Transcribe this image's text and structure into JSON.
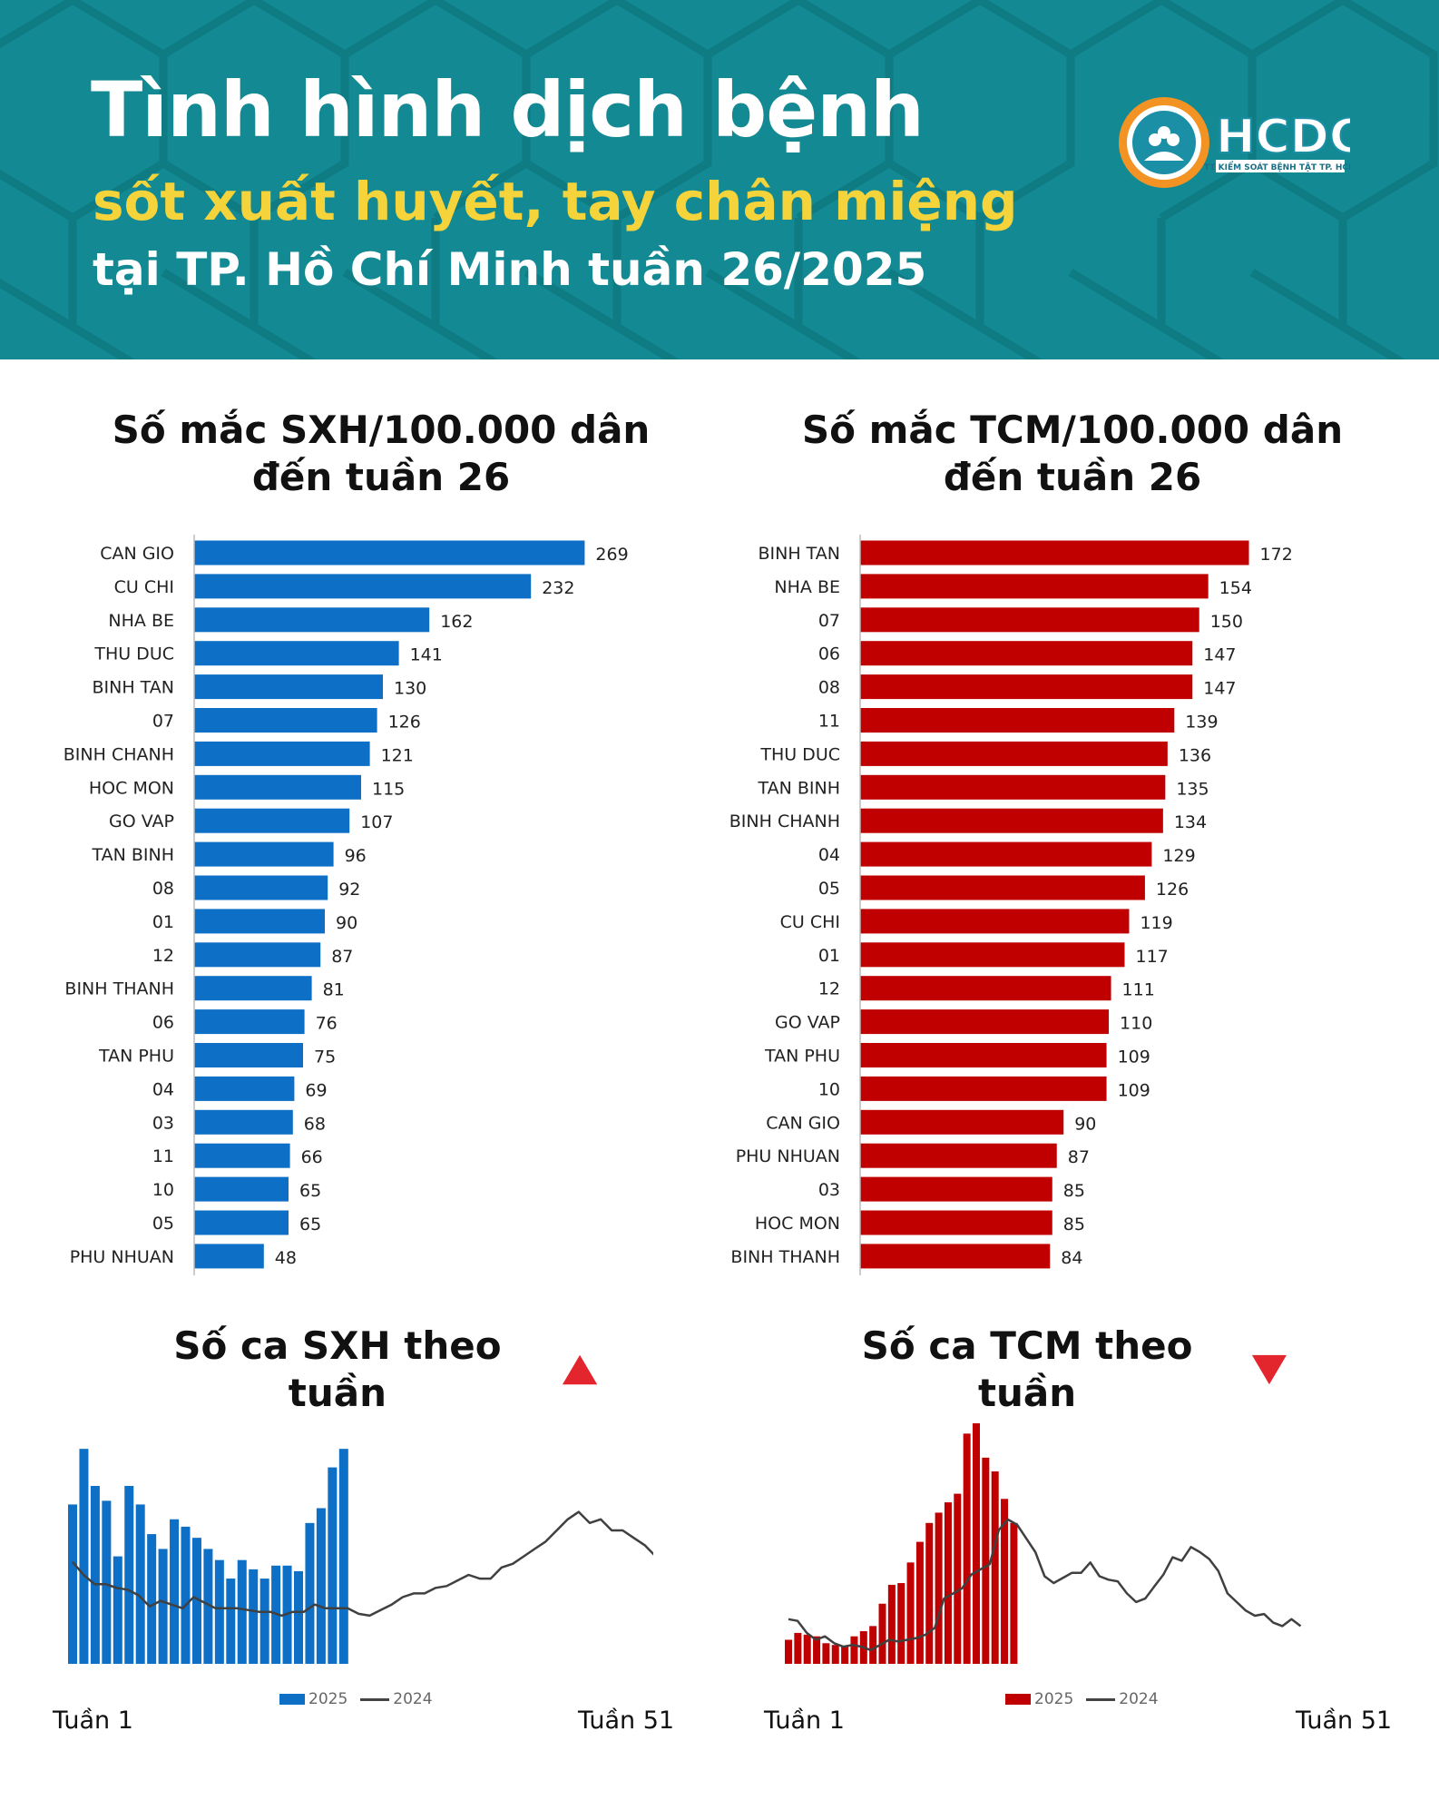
{
  "header": {
    "title_line1": "Tình hình dịch bệnh",
    "title_line2": "sốt xuất huyết, tay chân miệng",
    "title_line3": "tại TP. Hồ Chí Minh tuần 26/2025",
    "logo_text": "HCDC",
    "logo_subtext": "TT KIỂM SOÁT BỆNH TẬT TP. HCM"
  },
  "colors": {
    "header_bg": "#138a93",
    "accent_yellow": "#f5d33a",
    "sxh_blue": "#0d6fc5",
    "tcm_red": "#c00000",
    "line_2024": "#404040",
    "arrow_red": "#e3262e"
  },
  "icons": {
    "sxh_trend": "triangle-up-icon",
    "tcm_trend": "triangle-down-icon"
  },
  "chart_data": [
    {
      "type": "bar",
      "orientation": "horizontal",
      "title": "Số mắc SXH/100.000 dân đến tuần 26",
      "categories": [
        "CAN GIO",
        "CU CHI",
        "NHA BE",
        "THU DUC",
        "BINH TAN",
        "07",
        "BINH CHANH",
        "HOC MON",
        "GO VAP",
        "TAN BINH",
        "08",
        "01",
        "12",
        "BINH THANH",
        "06",
        "TAN PHU",
        "04",
        "03",
        "11",
        "10",
        "05",
        "PHU NHUAN"
      ],
      "values": [
        269,
        232,
        162,
        141,
        130,
        126,
        121,
        115,
        107,
        96,
        92,
        90,
        87,
        81,
        76,
        75,
        69,
        68,
        66,
        65,
        65,
        48
      ],
      "xlim": [
        0,
        270
      ]
    },
    {
      "type": "bar",
      "orientation": "horizontal",
      "title": "Số mắc TCM/100.000 dân đến tuần 26",
      "categories": [
        "BINH TAN",
        "NHA BE",
        "07",
        "06",
        "08",
        "11",
        "THU DUC",
        "TAN BINH",
        "BINH CHANH",
        "04",
        "05",
        "CU CHI",
        "01",
        "12",
        "GO VAP",
        "TAN PHU",
        "10",
        "CAN GIO",
        "PHU NHUAN",
        "03",
        "HOC MON",
        "BINH THANH"
      ],
      "values": [
        172,
        154,
        150,
        147,
        147,
        139,
        136,
        135,
        134,
        129,
        126,
        119,
        117,
        111,
        110,
        109,
        109,
        90,
        87,
        85,
        85,
        84
      ],
      "xlim": [
        0,
        175
      ]
    },
    {
      "type": "bar",
      "title": "Số ca SXH theo tuần",
      "x_start_label": "Tuần 1",
      "x_end_label": "Tuần 51",
      "series": [
        {
          "name": "2025",
          "kind": "bar",
          "values": [
            430,
            580,
            480,
            440,
            290,
            480,
            430,
            350,
            310,
            390,
            370,
            340,
            310,
            280,
            230,
            280,
            255,
            230,
            265,
            265,
            250,
            380,
            420,
            530,
            580
          ]
        },
        {
          "name": "2024",
          "kind": "line",
          "values": [
            275,
            240,
            215,
            215,
            205,
            200,
            185,
            155,
            170,
            160,
            150,
            180,
            165,
            150,
            150,
            150,
            145,
            140,
            140,
            130,
            140,
            140,
            160,
            150,
            150,
            150,
            135,
            130,
            145,
            160,
            180,
            190,
            190,
            205,
            210,
            225,
            240,
            230,
            230,
            260,
            270,
            290,
            310,
            330,
            360,
            390,
            410,
            380,
            390,
            360,
            360,
            340,
            320,
            290,
            290,
            260,
            250
          ]
        }
      ],
      "ylim": [
        0,
        600
      ]
    },
    {
      "type": "bar",
      "title": "Số ca TCM theo tuần",
      "x_start_label": "Tuần 1",
      "x_end_label": "Tuần 51",
      "series": [
        {
          "name": "2025",
          "kind": "bar",
          "values": [
            70,
            90,
            85,
            80,
            60,
            55,
            50,
            80,
            95,
            110,
            175,
            230,
            235,
            295,
            355,
            410,
            440,
            470,
            495,
            670,
            700,
            600,
            560,
            480,
            410
          ]
        },
        {
          "name": "2024",
          "kind": "line",
          "values": [
            130,
            125,
            90,
            70,
            80,
            60,
            50,
            55,
            50,
            40,
            55,
            70,
            65,
            70,
            75,
            85,
            105,
            190,
            205,
            220,
            260,
            275,
            290,
            390,
            420,
            405,
            365,
            325,
            255,
            235,
            250,
            265,
            265,
            295,
            255,
            245,
            240,
            205,
            180,
            190,
            225,
            260,
            310,
            300,
            340,
            325,
            305,
            270,
            205,
            180,
            155,
            140,
            145,
            120,
            110,
            130,
            110
          ]
        }
      ],
      "ylim": [
        0,
        700
      ]
    }
  ],
  "legend": {
    "label_2025": "2025",
    "label_2024": "2024"
  }
}
